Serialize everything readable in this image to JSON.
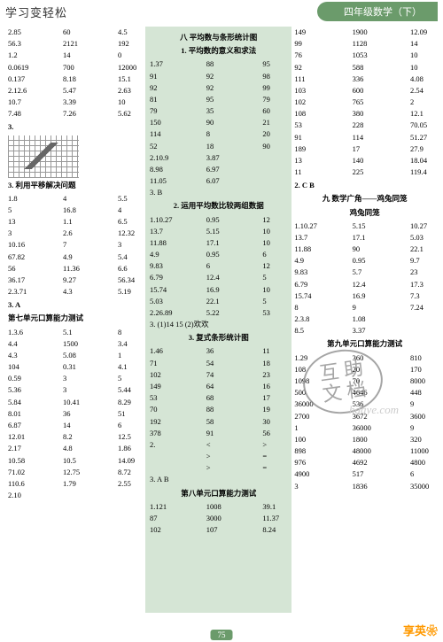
{
  "header": {
    "left": "学习变轻松",
    "right": "四年级数学（下）"
  },
  "col1": {
    "r1": [
      [
        "2.85",
        "60",
        "4.5"
      ],
      [
        "56.3",
        "2121",
        "192"
      ],
      [
        "1.2",
        "14",
        "0"
      ],
      [
        "0.0619",
        "700",
        "12000"
      ],
      [
        "0.137",
        "8.18",
        "15.1"
      ],
      [
        "2.12.6",
        "5.47",
        "2.63"
      ],
      [
        "10.7",
        "3.39",
        "10"
      ],
      [
        "7.48",
        "7.26",
        "5.62"
      ]
    ],
    "s1": "3.",
    "s2": "3. 利用平移解决问题",
    "r2": [
      [
        "1.8",
        "4",
        "5.5"
      ],
      [
        "5",
        "16.8",
        "4"
      ],
      [
        "13",
        "1.1",
        "6.5"
      ],
      [
        "3",
        "2.6",
        "12.32"
      ],
      [
        "10.16",
        "7",
        "3"
      ],
      [
        "67.82",
        "4.9",
        "5.4"
      ],
      [
        "56",
        "11.36",
        "6.6"
      ],
      [
        "36.17",
        "9.27",
        "56.34"
      ],
      [
        "2.3.71",
        "4.3",
        "5.19"
      ]
    ],
    "s3": "3. A",
    "s4": "第七单元口算能力测试",
    "r3": [
      [
        "1.3.6",
        "5.1",
        "8"
      ],
      [
        "4.4",
        "1500",
        "3.4"
      ],
      [
        "4.3",
        "5.08",
        "1"
      ],
      [
        "104",
        "0.31",
        "4.1"
      ],
      [
        "0.59",
        "3",
        "5"
      ],
      [
        "5.36",
        "3",
        "5.44"
      ],
      [
        "5.84",
        "10.41",
        "8.29"
      ],
      [
        "8.01",
        "36",
        "51"
      ],
      [
        "6.87",
        "14",
        "6"
      ],
      [
        "12.01",
        "8.2",
        "12.5"
      ],
      [
        "2.17",
        "4.8",
        "1.86"
      ],
      [
        "10.58",
        "10.5",
        "14.09"
      ],
      [
        "71.02",
        "12.75",
        "8.72"
      ],
      [
        "110.6",
        "1.79",
        "2.55"
      ],
      [
        "2.10",
        "",
        "",
        ""
      ]
    ]
  },
  "col2": {
    "t1": "八  平均数与条形统计图",
    "t2": "1. 平均数的意义和求法",
    "r1": [
      [
        "1.37",
        "88",
        "95"
      ],
      [
        "91",
        "92",
        "98"
      ],
      [
        "92",
        "92",
        "99"
      ],
      [
        "81",
        "95",
        "79"
      ],
      [
        "79",
        "35",
        "60"
      ],
      [
        "150",
        "90",
        "21"
      ],
      [
        "114",
        "8",
        "20"
      ],
      [
        "52",
        "18",
        "90"
      ],
      [
        "2.10.9",
        "3.87",
        ""
      ],
      [
        "8.98",
        "6.97",
        ""
      ],
      [
        "11.05",
        "6.07",
        ""
      ]
    ],
    "r2": [
      "3. B"
    ],
    "t3": "2. 运用平均数比较两组数据",
    "r3": [
      [
        "1.10.27",
        "0.95",
        "12"
      ],
      [
        "13.7",
        "5.15",
        "10"
      ],
      [
        "11.88",
        "17.1",
        "10"
      ],
      [
        "4.9",
        "0.95",
        "6"
      ],
      [
        "9.83",
        "6",
        "12"
      ],
      [
        "6.79",
        "12.4",
        "5"
      ],
      [
        "15.74",
        "16.9",
        "10"
      ],
      [
        "5.03",
        "22.1",
        "5"
      ],
      [
        "2.26.89",
        "5.22",
        "53"
      ]
    ],
    "r4": [
      "3. (1)14 15  (2)欢欢"
    ],
    "t4": "3. 复式条形统计图",
    "r5": [
      [
        "1.46",
        "36",
        "11"
      ],
      [
        "71",
        "54",
        "18"
      ],
      [
        "102",
        "74",
        "23"
      ],
      [
        "149",
        "64",
        "16"
      ],
      [
        "53",
        "68",
        "17"
      ],
      [
        "70",
        "88",
        "19"
      ],
      [
        "192",
        "58",
        "30"
      ],
      [
        "378",
        "91",
        "56"
      ]
    ],
    "r6": [
      [
        "2.",
        "<",
        ">"
      ],
      [
        "",
        ">",
        "="
      ],
      [
        "",
        ">",
        "="
      ]
    ],
    "r7": [
      "3. A  B"
    ],
    "t5": "第八单元口算能力测试",
    "r8": [
      [
        "1.121",
        "1008",
        "39.1"
      ],
      [
        "87",
        "3000",
        "11.37"
      ],
      [
        "102",
        "107",
        "8.24"
      ]
    ]
  },
  "col3": {
    "r1": [
      [
        "149",
        "1900",
        "12.09"
      ],
      [
        "99",
        "1128",
        "14"
      ],
      [
        "76",
        "1053",
        "10"
      ],
      [
        "92",
        "588",
        "10"
      ],
      [
        "111",
        "336",
        "4.08"
      ],
      [
        "103",
        "600",
        "2.54"
      ],
      [
        "102",
        "765",
        "2"
      ],
      [
        "108",
        "380",
        "12.1"
      ],
      [
        "53",
        "228",
        "70.05"
      ],
      [
        "91",
        "114",
        "51.27"
      ],
      [
        "189",
        "17",
        "27.9"
      ],
      [
        "13",
        "140",
        "18.04"
      ],
      [
        "11",
        "225",
        "119.4"
      ]
    ],
    "s1": "2. C  B",
    "t1": "九  数学广角——鸡兔同笼",
    "t2": "鸡兔同笼",
    "r2": [
      [
        "1.10.27",
        "5.15",
        "10.27"
      ],
      [
        "13.7",
        "17.1",
        "5.03"
      ],
      [
        "11.88",
        "90",
        "22.1"
      ],
      [
        "4.9",
        "0.95",
        "9.7"
      ],
      [
        "9.83",
        "5.7",
        "23"
      ],
      [
        "6.79",
        "12.4",
        "17.3"
      ],
      [
        "15.74",
        "16.9",
        "7.3"
      ],
      [
        "8",
        "9",
        "7.24"
      ]
    ],
    "r3": [
      [
        "2.3.8",
        "1.08",
        ""
      ],
      [
        "8.5",
        "3.37",
        ""
      ]
    ],
    "t3": "第九单元口算能力测试",
    "r4": [
      [
        "1.29",
        "360",
        "810"
      ],
      [
        "108",
        "20",
        "170"
      ],
      [
        "1098",
        "70",
        "8000"
      ],
      [
        "500",
        "4646",
        "448"
      ],
      [
        "36000",
        "536",
        "9"
      ],
      [
        "2700",
        "3672",
        "3600"
      ],
      [
        "1",
        "36000",
        "9"
      ],
      [
        "100",
        "1800",
        "320"
      ],
      [
        "898",
        "48000",
        "11000"
      ],
      [
        "976",
        "4692",
        "4800"
      ],
      [
        "4900",
        "517",
        "6"
      ],
      [
        "3",
        "1836",
        "35000"
      ]
    ]
  },
  "stamp": {
    "l1": "互 助",
    "l2": "文 档"
  },
  "watermark": "hdaye.com",
  "page": "75",
  "logo": "享英❀"
}
